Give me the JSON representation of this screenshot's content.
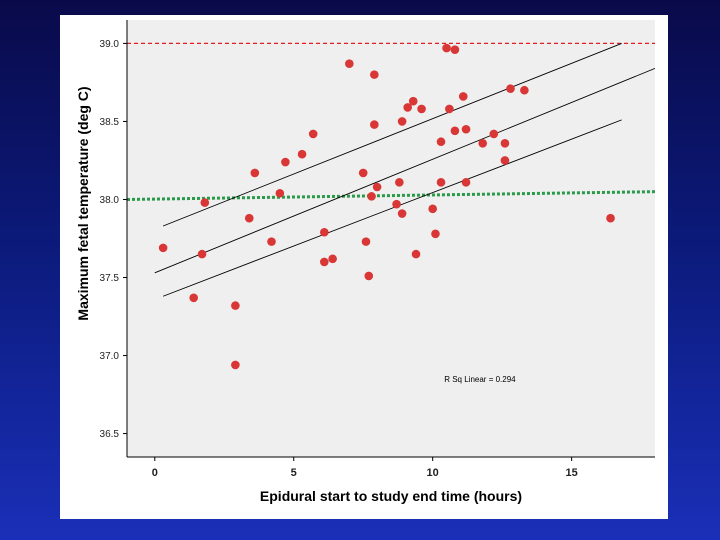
{
  "chart_data": {
    "type": "scatter",
    "xlabel": "Epidural start to study end time (hours)",
    "ylabel": "Maximum fetal temperature (deg C)",
    "xlim": [
      -1,
      18
    ],
    "ylim": [
      36.35,
      39.15
    ],
    "x_ticks": [
      0,
      5,
      10,
      15
    ],
    "y_ticks": [
      36.5,
      37.0,
      37.5,
      38.0,
      38.5,
      39.0
    ],
    "y_tick_labels": [
      "36.5",
      "37.0",
      "37.5",
      "38.0",
      "38.5",
      "39.0"
    ],
    "annotation": "R Sq Linear = 0.294",
    "grid": false,
    "point_color": "#d93636",
    "plot_background": "#efefef",
    "points": [
      {
        "x": 0.3,
        "y": 37.69
      },
      {
        "x": 1.4,
        "y": 37.37
      },
      {
        "x": 1.7,
        "y": 37.65
      },
      {
        "x": 1.8,
        "y": 37.98
      },
      {
        "x": 2.9,
        "y": 37.32
      },
      {
        "x": 2.9,
        "y": 36.94
      },
      {
        "x": 3.4,
        "y": 37.88
      },
      {
        "x": 3.6,
        "y": 38.17
      },
      {
        "x": 4.2,
        "y": 37.73
      },
      {
        "x": 4.5,
        "y": 38.04
      },
      {
        "x": 4.7,
        "y": 38.24
      },
      {
        "x": 5.3,
        "y": 38.29
      },
      {
        "x": 5.7,
        "y": 38.42
      },
      {
        "x": 6.1,
        "y": 37.79
      },
      {
        "x": 6.1,
        "y": 37.6
      },
      {
        "x": 6.4,
        "y": 37.62
      },
      {
        "x": 7.0,
        "y": 38.87
      },
      {
        "x": 7.5,
        "y": 38.17
      },
      {
        "x": 7.6,
        "y": 37.73
      },
      {
        "x": 7.7,
        "y": 37.51
      },
      {
        "x": 7.8,
        "y": 38.02
      },
      {
        "x": 7.9,
        "y": 38.48
      },
      {
        "x": 7.9,
        "y": 38.8
      },
      {
        "x": 8.0,
        "y": 38.08
      },
      {
        "x": 8.7,
        "y": 37.97
      },
      {
        "x": 8.8,
        "y": 38.11
      },
      {
        "x": 8.9,
        "y": 37.91
      },
      {
        "x": 8.9,
        "y": 38.5
      },
      {
        "x": 9.1,
        "y": 38.59
      },
      {
        "x": 9.3,
        "y": 38.63
      },
      {
        "x": 9.4,
        "y": 37.65
      },
      {
        "x": 9.6,
        "y": 38.58
      },
      {
        "x": 10.0,
        "y": 37.94
      },
      {
        "x": 10.1,
        "y": 37.78
      },
      {
        "x": 10.3,
        "y": 38.37
      },
      {
        "x": 10.3,
        "y": 38.11
      },
      {
        "x": 10.5,
        "y": 38.97
      },
      {
        "x": 10.6,
        "y": 38.58
      },
      {
        "x": 10.8,
        "y": 38.96
      },
      {
        "x": 10.8,
        "y": 38.44
      },
      {
        "x": 11.1,
        "y": 38.66
      },
      {
        "x": 11.2,
        "y": 38.45
      },
      {
        "x": 11.2,
        "y": 38.11
      },
      {
        "x": 11.8,
        "y": 38.36
      },
      {
        "x": 12.2,
        "y": 38.42
      },
      {
        "x": 12.6,
        "y": 38.36
      },
      {
        "x": 12.6,
        "y": 38.25
      },
      {
        "x": 12.8,
        "y": 38.71
      },
      {
        "x": 13.3,
        "y": 38.7
      },
      {
        "x": 16.4,
        "y": 37.88
      }
    ],
    "fit_line": {
      "x": [
        0.0,
        18.0
      ],
      "y": [
        37.53,
        38.84
      ],
      "color": "#000000"
    },
    "ci_upper": {
      "x": [
        0.3,
        16.8
      ],
      "y": [
        37.83,
        39.0
      ],
      "color": "#000000"
    },
    "ci_lower": {
      "x": [
        0.3,
        16.8
      ],
      "y": [
        37.38,
        38.51
      ],
      "color": "#000000"
    },
    "reference_lines": [
      {
        "y": 39.0,
        "color": "#e02020",
        "style": "dashed"
      },
      {
        "y": 38.0,
        "color": "#2a9a4a",
        "style": "dotted",
        "y_end": 38.05
      }
    ]
  }
}
